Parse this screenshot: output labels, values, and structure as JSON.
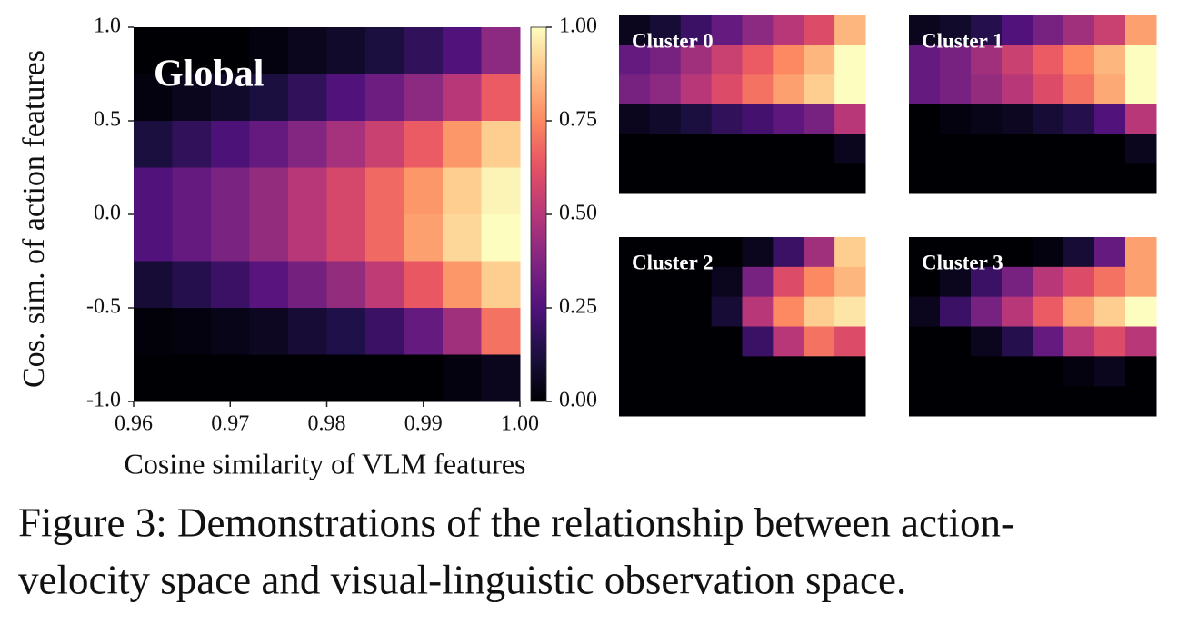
{
  "figure": {
    "caption": {
      "lines": [
        "Figure 3: Demonstrations of the relationship between action-",
        "velocity space and visual-linguistic observation space."
      ]
    }
  },
  "chart_data": [
    {
      "type": "heatmap",
      "title": "Global",
      "colormap": "magma",
      "xlabel": "Cosine similarity of VLM features",
      "ylabel": "Cos. sim. of action features",
      "xlim": [
        0.96,
        1.0
      ],
      "ylim": [
        -1.0,
        1.0
      ],
      "xticks": [
        0.96,
        0.97,
        0.98,
        0.99,
        {
          "value": 1.0,
          "label": "1.00"
        }
      ],
      "yticks": [
        {
          "value": 1.0,
          "label": "1.0"
        },
        0.5,
        {
          "value": 0,
          "label": "0.0"
        },
        -0.5,
        {
          "value": -1.0,
          "label": "-1.0"
        }
      ],
      "colorbar": {
        "clim": [
          0,
          1
        ],
        "ticks": [
          {
            "value": 0,
            "label": "0.00"
          },
          0.25,
          {
            "value": 0.5,
            "label": "0.50"
          },
          0.75,
          {
            "value": 1,
            "label": "1.00"
          }
        ]
      },
      "values": [
        [
          0,
          0,
          0,
          0.02,
          0.05,
          0.08,
          0.12,
          0.18,
          0.25,
          0.4
        ],
        [
          0.02,
          0.05,
          0.08,
          0.12,
          0.18,
          0.25,
          0.32,
          0.4,
          0.5,
          0.65
        ],
        [
          0.12,
          0.18,
          0.24,
          0.3,
          0.38,
          0.46,
          0.55,
          0.65,
          0.78,
          0.9
        ],
        [
          0.25,
          0.3,
          0.36,
          0.42,
          0.5,
          0.58,
          0.68,
          0.78,
          0.9,
          0.98
        ],
        [
          0.25,
          0.3,
          0.36,
          0.42,
          0.5,
          0.58,
          0.68,
          0.8,
          0.92,
          1.0
        ],
        [
          0.1,
          0.15,
          0.2,
          0.27,
          0.34,
          0.42,
          0.52,
          0.64,
          0.78,
          0.9
        ],
        [
          0.01,
          0.02,
          0.04,
          0.06,
          0.1,
          0.14,
          0.2,
          0.3,
          0.45,
          0.7
        ],
        [
          0,
          0,
          0,
          0,
          0,
          0,
          0,
          0,
          0.02,
          0.05
        ]
      ]
    },
    {
      "type": "heatmap",
      "title": "Cluster 0",
      "colormap": "magma",
      "values": [
        [
          0.05,
          0.1,
          0.2,
          0.3,
          0.4,
          0.5,
          0.6,
          0.85
        ],
        [
          0.3,
          0.35,
          0.45,
          0.55,
          0.65,
          0.75,
          0.85,
          1
        ],
        [
          0.35,
          0.4,
          0.5,
          0.6,
          0.7,
          0.8,
          0.9,
          1
        ],
        [
          0.05,
          0.08,
          0.12,
          0.18,
          0.22,
          0.28,
          0.35,
          0.5
        ],
        [
          0,
          0,
          0,
          0,
          0,
          0,
          0,
          0.05
        ],
        [
          0,
          0,
          0,
          0,
          0,
          0,
          0,
          0
        ]
      ]
    },
    {
      "type": "heatmap",
      "title": "Cluster 1",
      "colormap": "magma",
      "values": [
        [
          0.05,
          0.08,
          0.15,
          0.25,
          0.35,
          0.45,
          0.55,
          0.8
        ],
        [
          0.3,
          0.35,
          0.45,
          0.55,
          0.65,
          0.75,
          0.85,
          1
        ],
        [
          0.3,
          0.35,
          0.42,
          0.5,
          0.6,
          0.7,
          0.82,
          1
        ],
        [
          0,
          0.02,
          0.04,
          0.06,
          0.1,
          0.15,
          0.25,
          0.5
        ],
        [
          0,
          0,
          0,
          0,
          0,
          0,
          0,
          0.05
        ],
        [
          0,
          0,
          0,
          0,
          0,
          0,
          0,
          0
        ]
      ]
    },
    {
      "type": "heatmap",
      "title": "Cluster 2",
      "colormap": "magma",
      "values": [
        [
          0,
          0,
          0,
          0,
          0.05,
          0.2,
          0.45,
          0.9
        ],
        [
          0,
          0,
          0,
          0.05,
          0.35,
          0.6,
          0.75,
          0.85
        ],
        [
          0,
          0,
          0,
          0.1,
          0.5,
          0.75,
          0.9,
          0.95
        ],
        [
          0,
          0,
          0,
          0,
          0.2,
          0.5,
          0.7,
          0.6
        ],
        [
          0,
          0,
          0,
          0,
          0,
          0,
          0,
          0
        ],
        [
          0,
          0,
          0,
          0,
          0,
          0,
          0,
          0
        ]
      ]
    },
    {
      "type": "heatmap",
      "title": "Cluster 3",
      "colormap": "magma",
      "values": [
        [
          0,
          0,
          0,
          0,
          0.02,
          0.1,
          0.3,
          0.8
        ],
        [
          0,
          0.05,
          0.2,
          0.35,
          0.5,
          0.6,
          0.7,
          0.8
        ],
        [
          0.05,
          0.2,
          0.35,
          0.5,
          0.65,
          0.8,
          0.9,
          1
        ],
        [
          0,
          0,
          0.05,
          0.15,
          0.3,
          0.5,
          0.6,
          0.5
        ],
        [
          0,
          0,
          0,
          0,
          0,
          0.02,
          0.05,
          0
        ],
        [
          0,
          0,
          0,
          0,
          0,
          0,
          0,
          0
        ]
      ]
    }
  ]
}
